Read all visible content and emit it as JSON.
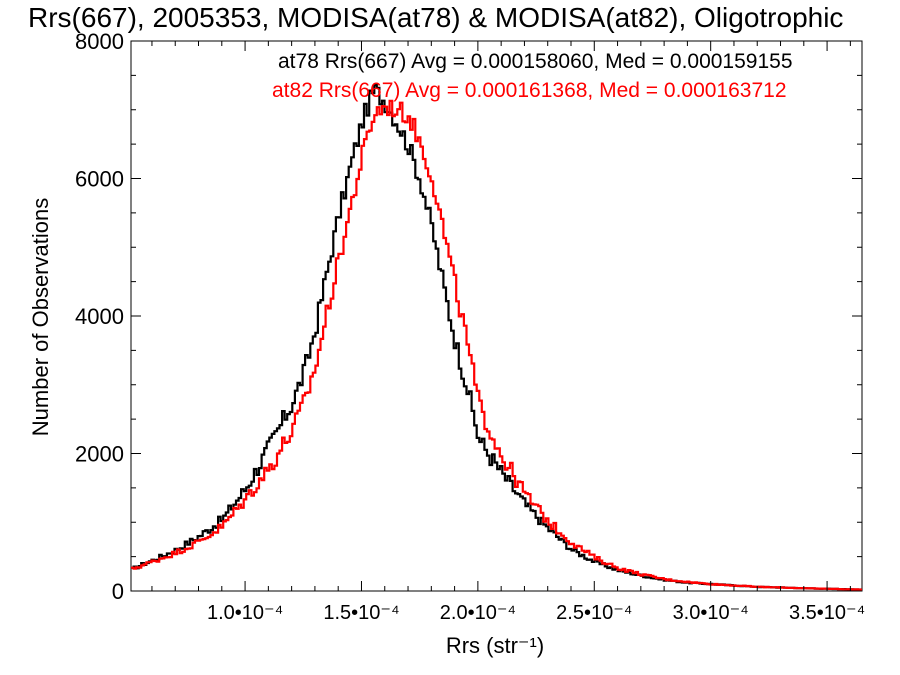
{
  "chart_data": {
    "type": "line",
    "title": "Rrs(667), 2005353, MODISA(at78) & MODISA(at82), Oligotrophic",
    "xlabel": "Rrs (str⁻¹)",
    "ylabel": "Number of Observations",
    "xlim": [
      5.1e-05,
      0.000365
    ],
    "ylim": [
      0,
      8000
    ],
    "x_ticks": [
      {
        "value": 0.0001,
        "label": "1.0•10⁻⁴"
      },
      {
        "value": 0.00015,
        "label": "1.5•10⁻⁴"
      },
      {
        "value": 0.0002,
        "label": "2.0•10⁻⁴"
      },
      {
        "value": 0.00025,
        "label": "2.5•10⁻⁴"
      },
      {
        "value": 0.0003,
        "label": "3.0•10⁻⁴"
      },
      {
        "value": 0.00035,
        "label": "3.5•10⁻⁴"
      }
    ],
    "y_ticks": [
      {
        "value": 0,
        "label": "0"
      },
      {
        "value": 2000,
        "label": "2000"
      },
      {
        "value": 4000,
        "label": "4000"
      },
      {
        "value": 6000,
        "label": "6000"
      },
      {
        "value": 8000,
        "label": "8000"
      }
    ],
    "grid": false,
    "legend_position": "top-right",
    "series": [
      {
        "name": "at78",
        "color": "#000000",
        "legend": "at78 Rrs(667) Avg = 0.000158060, Med = 0.000159155",
        "x": [
          5.1e-05,
          6e-05,
          7e-05,
          8e-05,
          9e-05,
          0.0001,
          0.00011,
          0.00012,
          0.000125,
          0.00013,
          0.000135,
          0.00014,
          0.000145,
          0.00015,
          0.000155,
          0.00016,
          0.000165,
          0.00017,
          0.000175,
          0.00018,
          0.000185,
          0.00019,
          0.000195,
          0.0002,
          0.00021,
          0.00022,
          0.00023,
          0.00024,
          0.00025,
          0.00026,
          0.00027,
          0.00028,
          0.00029,
          0.0003,
          0.00032,
          0.00034,
          0.000365
        ],
        "y": [
          320,
          450,
          600,
          800,
          1050,
          1500,
          2100,
          2750,
          3200,
          3850,
          4700,
          5500,
          6200,
          6850,
          7300,
          7100,
          6800,
          6450,
          5950,
          5250,
          4400,
          3600,
          2950,
          2200,
          1700,
          1250,
          900,
          600,
          420,
          300,
          220,
          160,
          120,
          100,
          60,
          40,
          20
        ],
        "noise_amplitude": 140
      },
      {
        "name": "at82",
        "color": "#ff0000",
        "legend": "at82 Rrs(667) Avg = 0.000161368, Med = 0.000163712",
        "x": [
          5.1e-05,
          6e-05,
          7e-05,
          8e-05,
          9e-05,
          0.0001,
          0.00011,
          0.00012,
          0.000125,
          0.00013,
          0.000135,
          0.00014,
          0.000145,
          0.00015,
          0.000155,
          0.00016,
          0.000165,
          0.00017,
          0.000175,
          0.00018,
          0.000185,
          0.00019,
          0.000195,
          0.0002,
          0.00021,
          0.00022,
          0.00023,
          0.00024,
          0.00025,
          0.00026,
          0.00027,
          0.00028,
          0.00029,
          0.0003,
          0.00032,
          0.00034,
          0.000365
        ],
        "y": [
          320,
          430,
          560,
          720,
          950,
          1350,
          1800,
          2350,
          2750,
          3300,
          4100,
          4850,
          5600,
          6350,
          6950,
          7050,
          7000,
          6900,
          6500,
          6000,
          5200,
          4400,
          3600,
          2700,
          1950,
          1400,
          1000,
          700,
          480,
          330,
          240,
          170,
          130,
          100,
          60,
          40,
          20
        ],
        "noise_amplitude": 140
      }
    ]
  }
}
